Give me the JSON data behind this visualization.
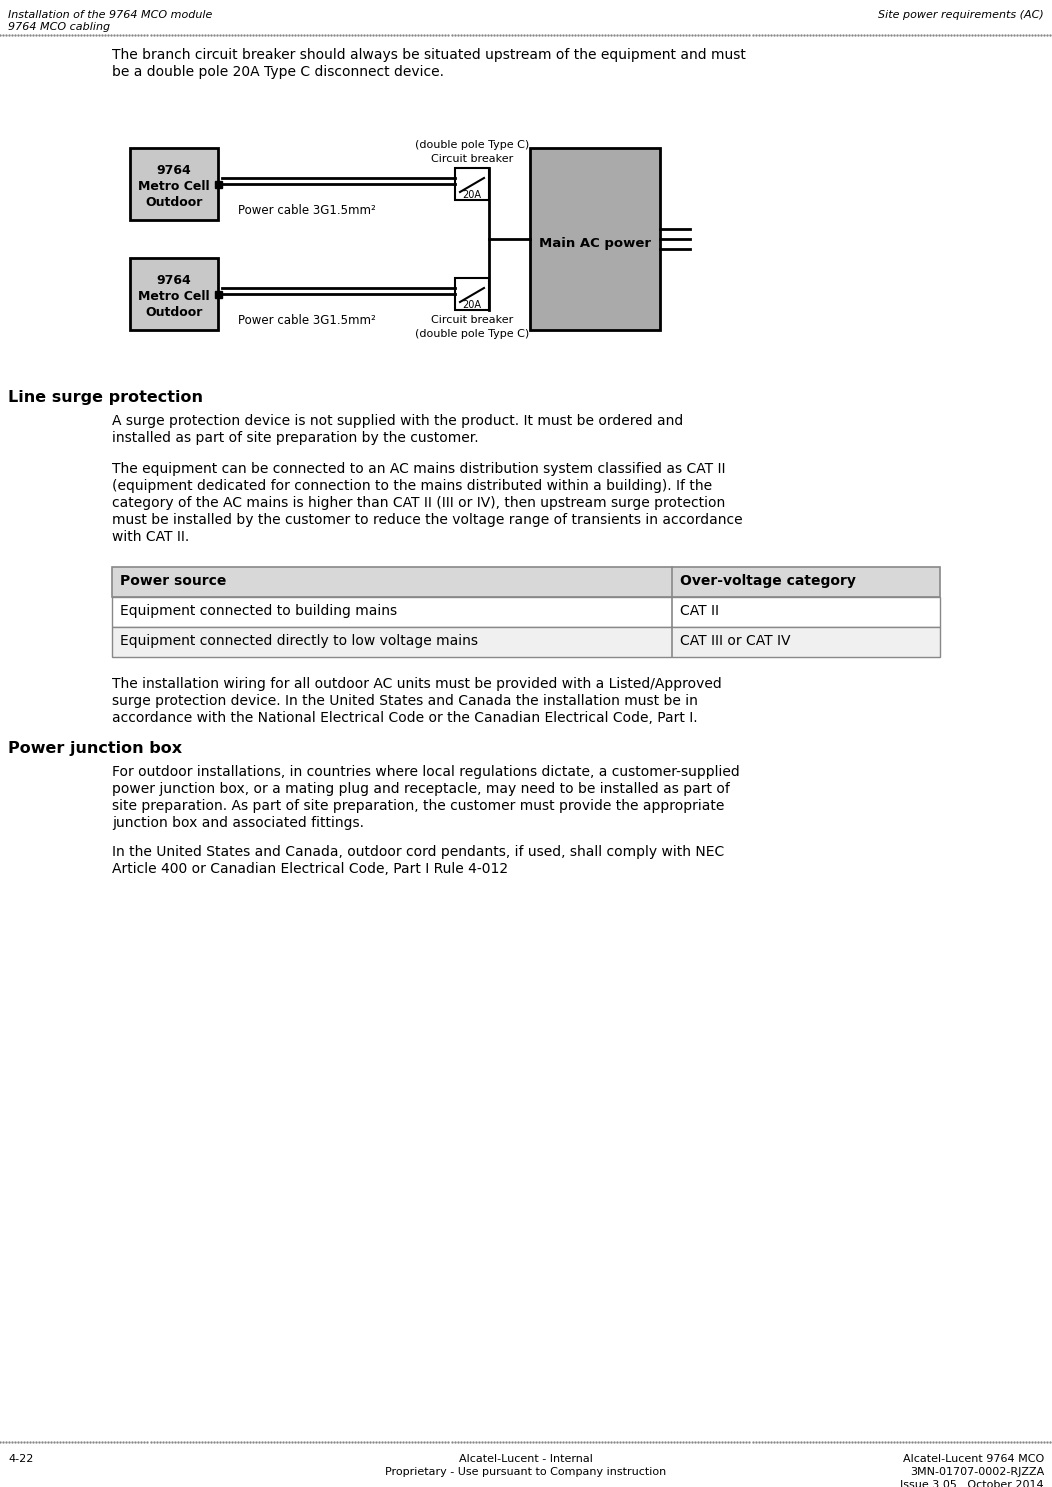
{
  "header_left_line1": "Installation of the 9764 MCO module",
  "header_left_line2": "9764 MCO cabling",
  "header_right": "Site power requirements (AC)",
  "footer_left": "4-22",
  "footer_center_line1": "Alcatel-Lucent - Internal",
  "footer_center_line2": "Proprietary - Use pursuant to Company instruction",
  "footer_right_line1": "Alcatel-Lucent 9764 MCO",
  "footer_right_line2": "3MN-01707-0002-RJZZA",
  "footer_right_line3": "Issue 3.05   October 2014",
  "para1_line1": "The branch circuit breaker should always be situated upstream of the equipment and must",
  "para1_line2": "be a double pole 20A Type C disconnect device.",
  "section1_title": "Line surge protection",
  "section1_para1_line1": "A surge protection device is not supplied with the product. It must be ordered and",
  "section1_para1_line2": "installed as part of site preparation by the customer.",
  "section1_para2_line1": "The equipment can be connected to an AC mains distribution system classified as CAT II",
  "section1_para2_line2": "(equipment dedicated for connection to the mains distributed within a building). If the",
  "section1_para2_line3": "category of the AC mains is higher than CAT II (III or IV), then upstream surge protection",
  "section1_para2_line4": "must be installed by the customer to reduce the voltage range of transients in accordance",
  "section1_para2_line5": "with CAT II.",
  "table_header_col1": "Power source",
  "table_header_col2": "Over-voltage category",
  "table_row1_col1": "Equipment connected to building mains",
  "table_row1_col2": "CAT II",
  "table_row2_col1": "Equipment connected directly to low voltage mains",
  "table_row2_col2": "CAT III or CAT IV",
  "section1_para3_line1": "The installation wiring for all outdoor AC units must be provided with a Listed/Approved",
  "section1_para3_line2": "surge protection device. In the United States and Canada the installation must be in",
  "section1_para3_line3": "accordance with the National Electrical Code or the Canadian Electrical Code, Part I.",
  "section2_title": "Power junction box",
  "section2_para1_line1": "For outdoor installations, in countries where local regulations dictate, a customer-supplied",
  "section2_para1_line2": "power junction box, or a mating plug and receptacle, may need to be installed as part of",
  "section2_para1_line3": "site preparation. As part of site preparation, the customer must provide the appropriate",
  "section2_para1_line4": "junction box and associated fittings.",
  "section2_para2_line1": "In the United States and Canada, outdoor cord pendants, if used, shall comply with NEC",
  "section2_para2_line2": "Article 400 or Canadian Electrical Code, Part I Rule 4-012",
  "bg_color": "#ffffff",
  "text_color": "#000000",
  "header_font_size": 8.0,
  "body_font_size": 10.0,
  "section_title_font_size": 11.5,
  "footer_font_size": 8.0,
  "table_header_bg": "#d8d8d8",
  "table_header_fg": "#000000",
  "table_row1_bg": "#ffffff",
  "table_row2_bg": "#f0f0f0",
  "table_border_color": "#888888",
  "diagram_metro_fill": "#c8c8c8",
  "diagram_metro_border": "#000000",
  "diagram_breaker_fill": "#ffffff",
  "diagram_main_fill": "#aaaaaa",
  "diagram_line_color": "#000000"
}
